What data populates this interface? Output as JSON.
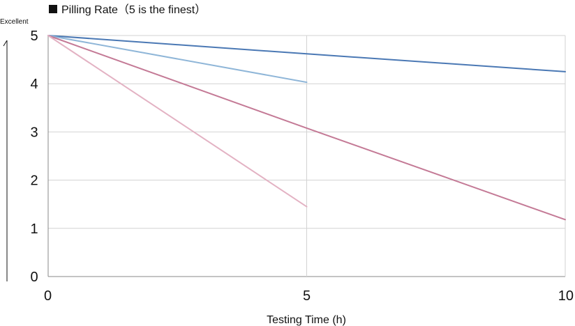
{
  "chart_data": {
    "type": "line",
    "title": "Pilling Rate（5 is the finest）",
    "xlabel": "Testing Time (h)",
    "ylabel_note": "Excellent",
    "xlim": [
      0,
      10
    ],
    "ylim": [
      0,
      5
    ],
    "xticks": [
      "0",
      "5",
      "10"
    ],
    "yticks": [
      "0",
      "1",
      "2",
      "3",
      "4",
      "5"
    ],
    "grid": true,
    "series": [
      {
        "color": "#4a78b4",
        "points": [
          [
            0,
            5
          ],
          [
            5,
            4.62
          ],
          [
            10,
            4.25
          ]
        ]
      },
      {
        "color": "#8fb6d8",
        "points": [
          [
            0,
            5
          ],
          [
            5,
            4.03
          ]
        ]
      },
      {
        "color": "#c47a96",
        "points": [
          [
            0,
            5
          ],
          [
            5,
            3.08
          ],
          [
            10,
            1.18
          ]
        ]
      },
      {
        "color": "#e3b2c3",
        "points": [
          [
            0,
            5
          ],
          [
            5,
            1.45
          ]
        ]
      }
    ]
  }
}
